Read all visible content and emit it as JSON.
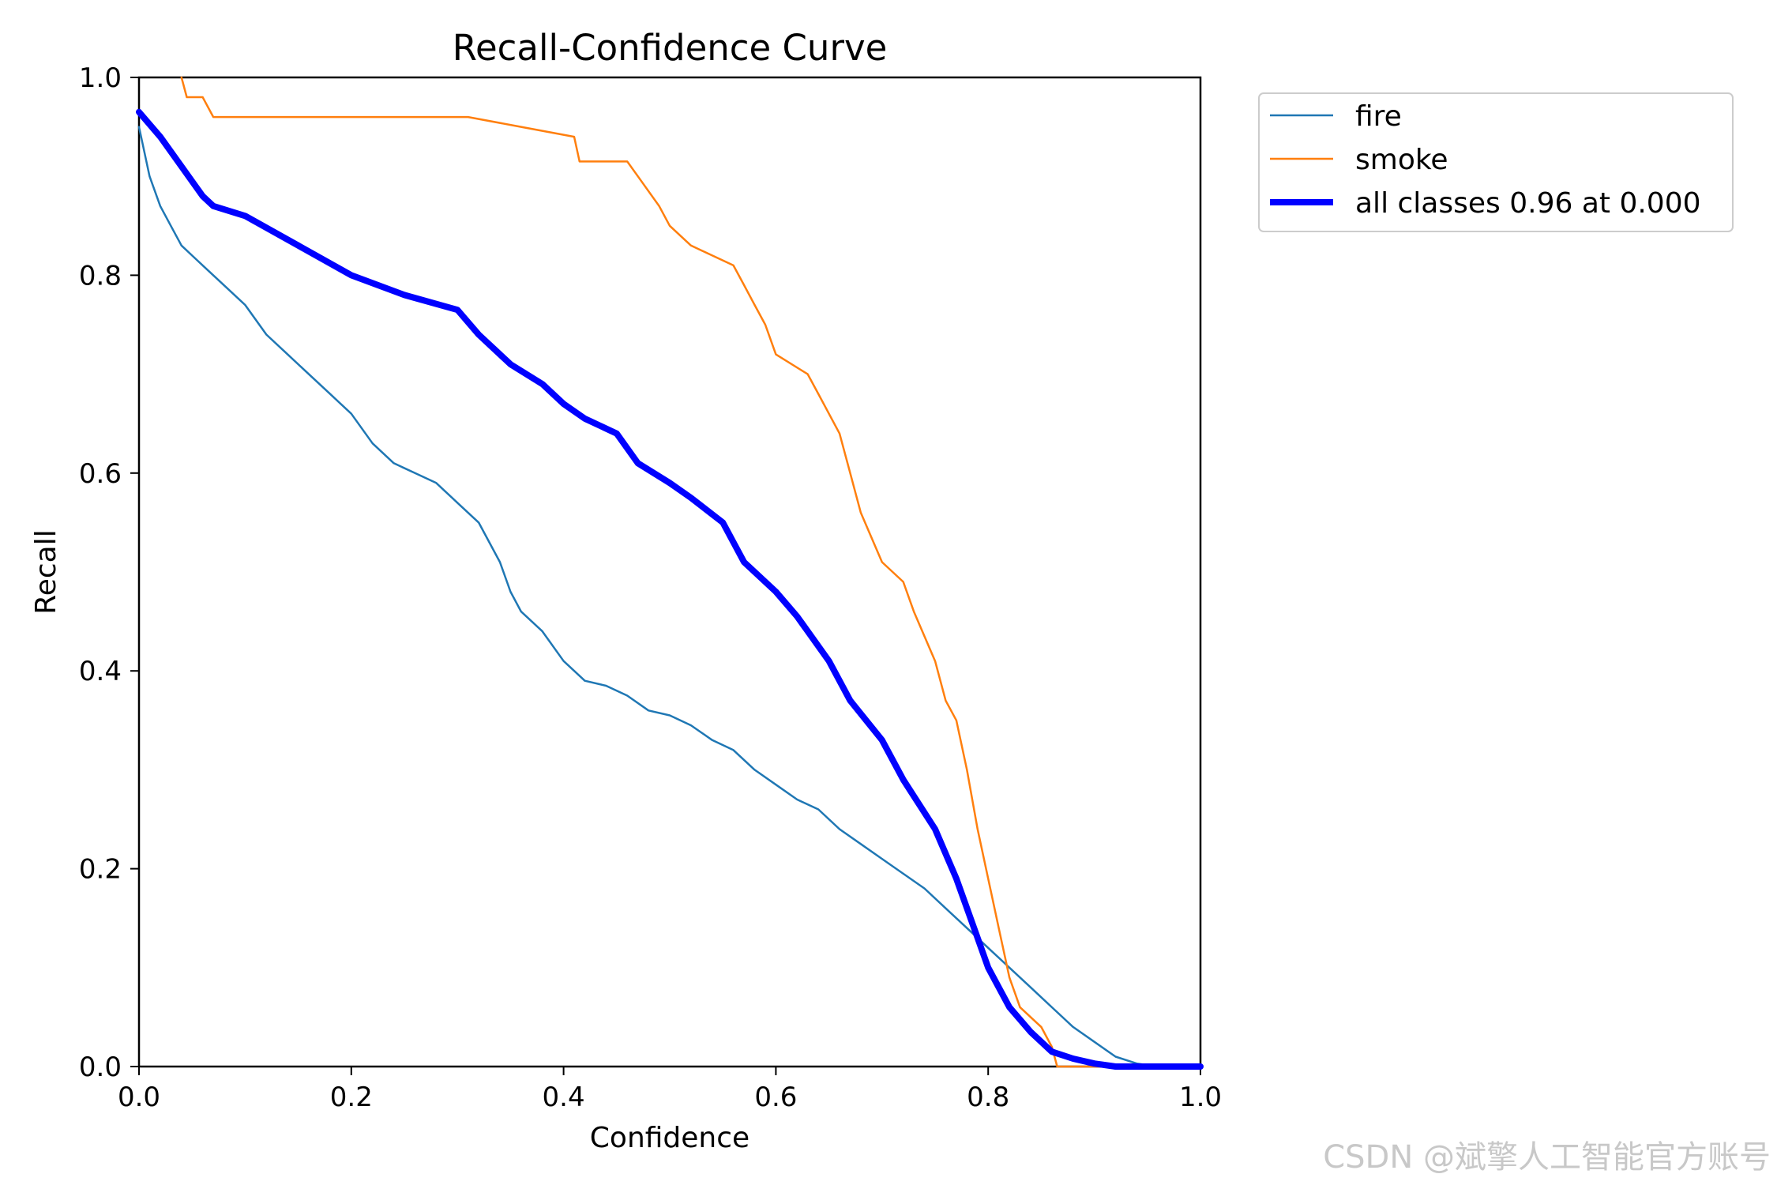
{
  "chart_data": {
    "type": "line",
    "title": "Recall-Confidence Curve",
    "xlabel": "Confidence",
    "ylabel": "Recall",
    "xlim": [
      0,
      1
    ],
    "ylim": [
      0,
      1
    ],
    "xticks": [
      "0.0",
      "0.2",
      "0.4",
      "0.6",
      "0.8",
      "1.0"
    ],
    "yticks": [
      "0.0",
      "0.2",
      "0.4",
      "0.6",
      "0.8",
      "1.0"
    ],
    "grid": false,
    "legend_position": "outside-upper-right",
    "series": [
      {
        "name": "fire",
        "color": "#1f77b4",
        "width": "thin",
        "x": [
          0.0,
          0.01,
          0.02,
          0.03,
          0.04,
          0.05,
          0.06,
          0.08,
          0.1,
          0.12,
          0.14,
          0.16,
          0.18,
          0.2,
          0.22,
          0.24,
          0.26,
          0.28,
          0.3,
          0.32,
          0.34,
          0.35,
          0.36,
          0.38,
          0.4,
          0.42,
          0.44,
          0.46,
          0.48,
          0.5,
          0.52,
          0.54,
          0.56,
          0.58,
          0.6,
          0.62,
          0.64,
          0.66,
          0.68,
          0.7,
          0.72,
          0.74,
          0.76,
          0.78,
          0.8,
          0.82,
          0.84,
          0.86,
          0.88,
          0.9,
          0.92,
          0.94,
          0.96,
          1.0
        ],
        "y": [
          0.95,
          0.9,
          0.87,
          0.85,
          0.83,
          0.82,
          0.81,
          0.79,
          0.77,
          0.74,
          0.72,
          0.7,
          0.68,
          0.66,
          0.63,
          0.61,
          0.6,
          0.59,
          0.57,
          0.55,
          0.51,
          0.48,
          0.46,
          0.44,
          0.41,
          0.39,
          0.385,
          0.375,
          0.36,
          0.355,
          0.345,
          0.33,
          0.32,
          0.3,
          0.285,
          0.27,
          0.26,
          0.24,
          0.225,
          0.21,
          0.195,
          0.18,
          0.16,
          0.14,
          0.12,
          0.1,
          0.08,
          0.06,
          0.04,
          0.025,
          0.01,
          0.003,
          0.0,
          0.0
        ]
      },
      {
        "name": "smoke",
        "color": "#ff7f0e",
        "width": "thin",
        "x": [
          0.04,
          0.045,
          0.06,
          0.07,
          0.1,
          0.2,
          0.31,
          0.36,
          0.41,
          0.415,
          0.46,
          0.47,
          0.49,
          0.5,
          0.52,
          0.56,
          0.57,
          0.58,
          0.59,
          0.6,
          0.63,
          0.64,
          0.66,
          0.67,
          0.68,
          0.7,
          0.72,
          0.73,
          0.75,
          0.76,
          0.77,
          0.78,
          0.79,
          0.8,
          0.81,
          0.82,
          0.825,
          0.83,
          0.85,
          0.86,
          0.865,
          0.9,
          0.95,
          1.0
        ],
        "y": [
          1.0,
          0.98,
          0.98,
          0.96,
          0.96,
          0.96,
          0.96,
          0.95,
          0.94,
          0.915,
          0.915,
          0.9,
          0.87,
          0.85,
          0.83,
          0.81,
          0.79,
          0.77,
          0.75,
          0.72,
          0.7,
          0.68,
          0.64,
          0.6,
          0.56,
          0.51,
          0.49,
          0.46,
          0.41,
          0.37,
          0.35,
          0.3,
          0.24,
          0.19,
          0.14,
          0.09,
          0.075,
          0.06,
          0.04,
          0.02,
          0.0,
          0.0,
          0.0,
          0.0
        ]
      },
      {
        "name": "all classes 0.96 at 0.000",
        "color": "#0000ff",
        "width": "thick",
        "x": [
          0.0,
          0.02,
          0.04,
          0.06,
          0.07,
          0.1,
          0.15,
          0.2,
          0.25,
          0.3,
          0.32,
          0.35,
          0.38,
          0.4,
          0.42,
          0.45,
          0.47,
          0.5,
          0.52,
          0.55,
          0.57,
          0.6,
          0.62,
          0.65,
          0.67,
          0.7,
          0.72,
          0.75,
          0.77,
          0.79,
          0.8,
          0.82,
          0.84,
          0.86,
          0.88,
          0.9,
          0.92,
          0.94,
          0.96,
          1.0
        ],
        "y": [
          0.965,
          0.94,
          0.91,
          0.88,
          0.87,
          0.86,
          0.83,
          0.8,
          0.78,
          0.765,
          0.74,
          0.71,
          0.69,
          0.67,
          0.655,
          0.64,
          0.61,
          0.59,
          0.575,
          0.55,
          0.51,
          0.48,
          0.455,
          0.41,
          0.37,
          0.33,
          0.29,
          0.24,
          0.19,
          0.13,
          0.1,
          0.06,
          0.035,
          0.015,
          0.008,
          0.003,
          0.0,
          0.0,
          0.0,
          0.0
        ]
      }
    ]
  },
  "watermark": "CSDN @斌擎人工智能官方账号"
}
